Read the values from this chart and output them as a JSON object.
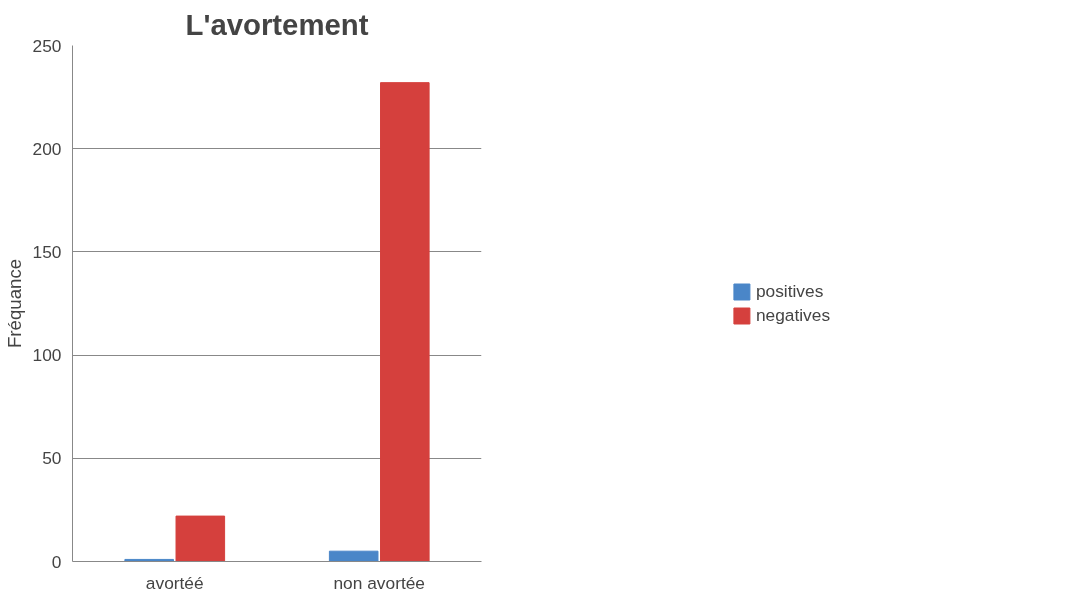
{
  "chart_data": {
    "type": "bar",
    "title": "L'avortement",
    "ylabel": "Fréquance",
    "categories": [
      "avortéé",
      "non avortée"
    ],
    "series": [
      {
        "name": "positives",
        "color": "#4a86c8",
        "values": [
          1,
          5
        ]
      },
      {
        "name": "negatives",
        "color": "#d5403d",
        "values": [
          22,
          232
        ]
      }
    ],
    "ylim": [
      0,
      250
    ],
    "yticks": [
      0,
      50,
      100,
      150,
      200,
      250
    ],
    "grid": "y",
    "legend": "right"
  }
}
